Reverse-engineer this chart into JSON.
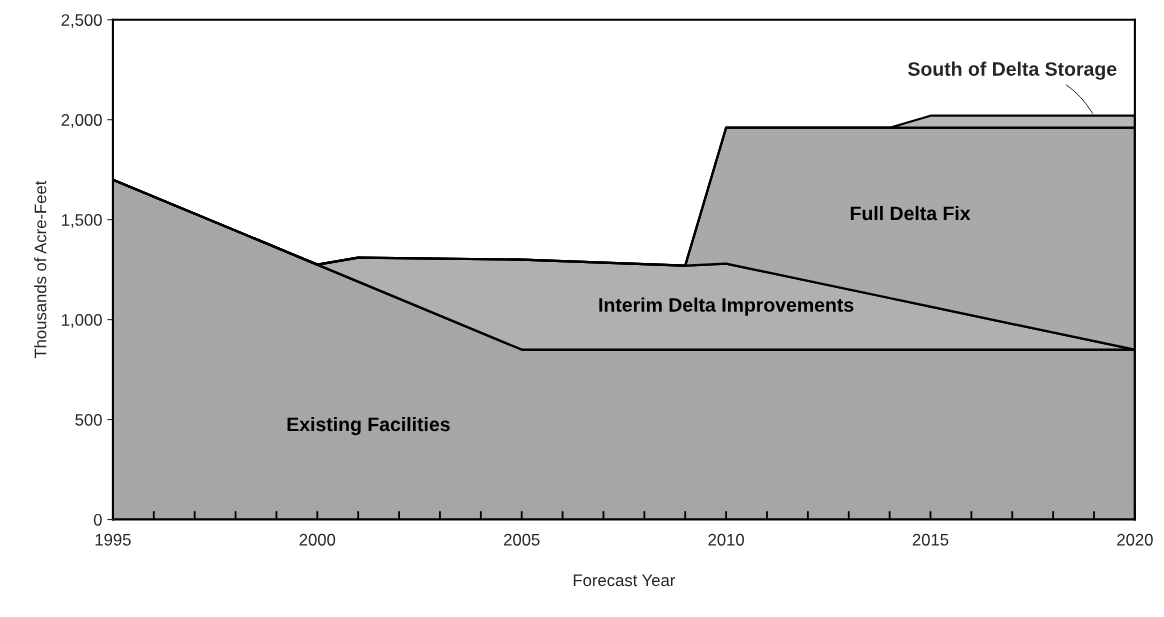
{
  "chart_data": {
    "type": "area",
    "stacked": true,
    "xlabel": "Forecast Year",
    "ylabel": "Thousands of Acre-Feet",
    "x": [
      1995,
      2000,
      2001,
      2005,
      2009,
      2010,
      2014,
      2015,
      2020
    ],
    "series": [
      {
        "name": "Existing Facilities",
        "color": "#a6a6a6",
        "values": [
          1700,
          1275,
          1190,
          850,
          850,
          850,
          850,
          850,
          850
        ]
      },
      {
        "name": "Interim Delta Improvements",
        "color": "#b0b0b0",
        "values": [
          0,
          0,
          120,
          450,
          420,
          430,
          258,
          215,
          0
        ]
      },
      {
        "name": "Full Delta Fix",
        "color": "#a9a9a9",
        "values": [
          0,
          0,
          0,
          0,
          0,
          680,
          852,
          895,
          1110
        ]
      },
      {
        "name": "South of Delta Storage",
        "color": "#b8b8b8",
        "values": [
          0,
          0,
          0,
          0,
          0,
          0,
          0,
          60,
          60
        ]
      }
    ],
    "xlim": [
      1995,
      2020
    ],
    "xticks": [
      1995,
      {
        "value": 1996,
        "label": null
      },
      {
        "value": 1997,
        "label": null
      },
      {
        "value": 1998,
        "label": null
      },
      {
        "value": 1999,
        "label": null
      },
      2000,
      {
        "value": 2001,
        "label": null
      },
      {
        "value": 2002,
        "label": null
      },
      {
        "value": 2003,
        "label": null
      },
      {
        "value": 2004,
        "label": null
      },
      2005,
      {
        "value": 2006,
        "label": null
      },
      {
        "value": 2007,
        "label": null
      },
      {
        "value": 2008,
        "label": null
      },
      {
        "value": 2009,
        "label": null
      },
      2010,
      {
        "value": 2011,
        "label": null
      },
      {
        "value": 2012,
        "label": null
      },
      {
        "value": 2013,
        "label": null
      },
      {
        "value": 2014,
        "label": null
      },
      2015,
      {
        "value": 2016,
        "label": null
      },
      {
        "value": 2017,
        "label": null
      },
      {
        "value": 2018,
        "label": null
      },
      {
        "value": 2019,
        "label": null
      },
      2020
    ],
    "ylim": [
      0,
      2500
    ],
    "yticks": [
      {
        "value": 0,
        "label": "0"
      },
      {
        "value": 500,
        "label": "500"
      },
      {
        "value": 1000,
        "label": "1,000"
      },
      {
        "value": 1500,
        "label": "1,500"
      },
      {
        "value": 2000,
        "label": "2,000"
      },
      {
        "value": 2500,
        "label": "2,500"
      }
    ],
    "grid": false,
    "legend": false
  }
}
